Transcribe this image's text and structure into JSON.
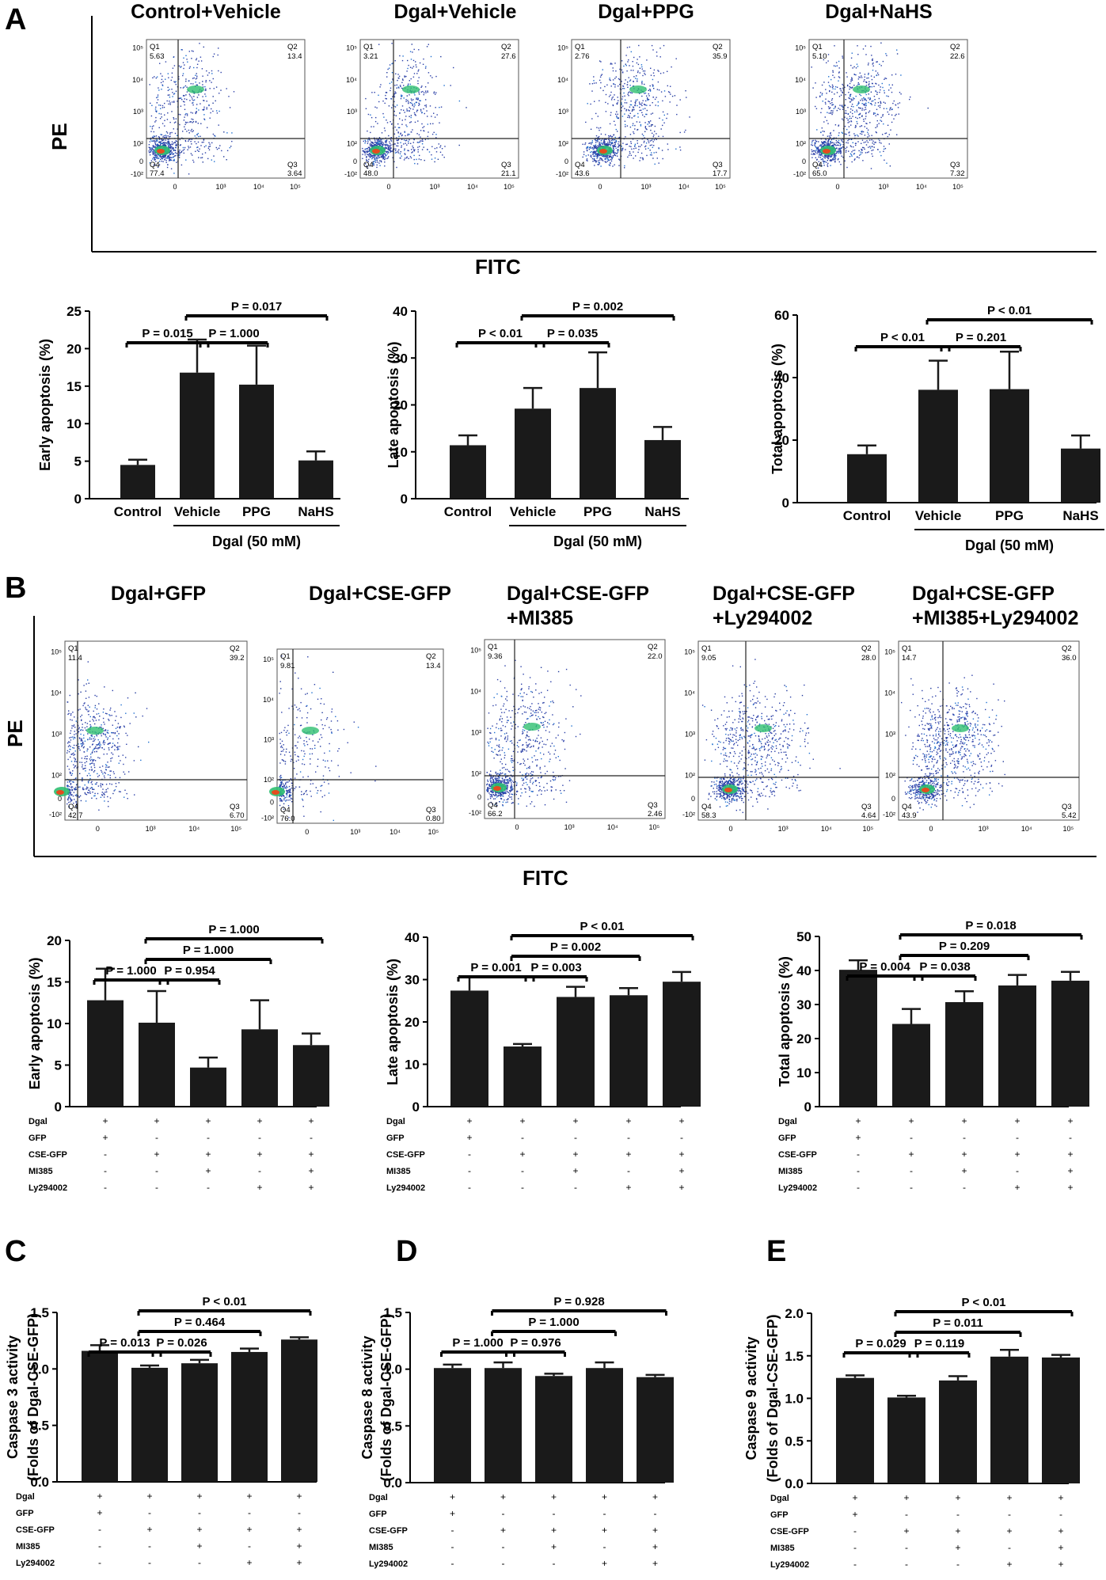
{
  "panels": {
    "A": "A",
    "B": "B",
    "C": "C",
    "D": "D",
    "E": "E"
  },
  "flow_axis": {
    "pe": "PE",
    "fitc": "FITC"
  },
  "flow_headers_A": [
    "Control+Vehicle",
    "Dgal+Vehicle",
    "Dgal+PPG",
    "Dgal+NaHS"
  ],
  "flow_headers_B": [
    [
      "Dgal+GFP",
      ""
    ],
    [
      "Dgal+CSE-GFP",
      ""
    ],
    [
      "Dgal+CSE-GFP",
      "+MI385"
    ],
    [
      "Dgal+CSE-GFP",
      "+Ly294002"
    ],
    [
      "Dgal+CSE-GFP",
      "+MI385+Ly294002"
    ]
  ],
  "flow_quadrants_A": [
    {
      "q1": "5.63",
      "q2": "13.4",
      "q3": "3.64",
      "q4": "77.4"
    },
    {
      "q1": "3.21",
      "q2": "27.6",
      "q3": "21.1",
      "q4": "48.0"
    },
    {
      "q1": "2.76",
      "q2": "35.9",
      "q3": "17.7",
      "q4": "43.6"
    },
    {
      "q1": "5.10",
      "q2": "22.6",
      "q3": "7.32",
      "q4": "65.0"
    }
  ],
  "flow_quadrants_B": [
    {
      "q1": "11.4",
      "q2": "39.2",
      "q3": "6.70",
      "q4": "42.7"
    },
    {
      "q1": "9.81",
      "q2": "13.4",
      "q3": "0.80",
      "q4": "76.0"
    },
    {
      "q1": "9.36",
      "q2": "22.0",
      "q3": "2.46",
      "q4": "66.2"
    },
    {
      "q1": "9.05",
      "q2": "28.0",
      "q3": "4.64",
      "q4": "58.3"
    },
    {
      "q1": "14.7",
      "q2": "36.0",
      "q3": "5.42",
      "q4": "43.9"
    }
  ],
  "quad_labels": [
    "Q1",
    "Q2",
    "Q3",
    "Q4"
  ],
  "flow_ticks": {
    "y": [
      "10⁵",
      "10⁴",
      "10³",
      "10²",
      "0",
      "-10²"
    ],
    "x": [
      "0",
      "10³",
      "10⁴",
      "10⁵"
    ]
  },
  "treatment_rows": [
    "Dgal",
    "GFP",
    "CSE-GFP",
    "MI385",
    "Ly294002"
  ],
  "treatment_signs": [
    [
      "+",
      "+",
      "+",
      "+",
      "+"
    ],
    [
      "+",
      "-",
      "-",
      "-",
      "-"
    ],
    [
      "-",
      "+",
      "+",
      "+",
      "+"
    ],
    [
      "-",
      "-",
      "+",
      "-",
      "+"
    ],
    [
      "-",
      "-",
      "-",
      "+",
      "+"
    ]
  ],
  "group_A_label": "Dgal (50 mM)",
  "chart_data": [
    {
      "id": "A1",
      "type": "bar",
      "ylabel": "Early apoptosis (%)",
      "ylim": [
        0,
        25
      ],
      "yticks": [
        "0",
        "5",
        "10",
        "15",
        "20",
        "25"
      ],
      "categories": [
        "Control",
        "Vehicle",
        "PPG",
        "NaHS"
      ],
      "values": [
        4.5,
        16.8,
        15.2,
        5.1
      ],
      "errors": [
        0.7,
        4.4,
        5.2,
        1.2
      ],
      "group_label": "Dgal (50 mM)",
      "brackets": [
        {
          "from": 0,
          "to": 1,
          "label": "P = 0.015"
        },
        {
          "from": 1,
          "to": 2,
          "label": "P = 1.000"
        },
        {
          "from": 1,
          "to": 3,
          "label": "P = 0.017"
        }
      ]
    },
    {
      "id": "A2",
      "type": "bar",
      "ylabel": "Late apoptosis (%)",
      "ylim": [
        0,
        40
      ],
      "yticks": [
        "0",
        "10",
        "20",
        "30",
        "40"
      ],
      "categories": [
        "Control",
        "Vehicle",
        "PPG",
        "NaHS"
      ],
      "values": [
        11.4,
        19.2,
        23.6,
        12.5
      ],
      "errors": [
        2.1,
        4.4,
        7.6,
        2.8
      ],
      "group_label": "Dgal (50 mM)",
      "brackets": [
        {
          "from": 0,
          "to": 1,
          "label": "P < 0.01"
        },
        {
          "from": 1,
          "to": 2,
          "label": "P = 0.035"
        },
        {
          "from": 1,
          "to": 3,
          "label": "P = 0.002"
        }
      ]
    },
    {
      "id": "A3",
      "type": "bar",
      "ylabel": "Total apoptosis (%)",
      "ylim": [
        0,
        60
      ],
      "yticks": [
        "0",
        "20",
        "40",
        "60"
      ],
      "categories": [
        "Control",
        "Vehicle",
        "PPG",
        "NaHS"
      ],
      "values": [
        15.5,
        36.1,
        36.3,
        17.3
      ],
      "errors": [
        2.8,
        9.3,
        12.0,
        4.2
      ],
      "group_label": "Dgal (50 mM)",
      "brackets": [
        {
          "from": 0,
          "to": 1,
          "label": "P < 0.01"
        },
        {
          "from": 1,
          "to": 2,
          "label": "P = 0.201"
        },
        {
          "from": 1,
          "to": 3,
          "label": "P < 0.01"
        }
      ]
    },
    {
      "id": "B1",
      "type": "bar",
      "ylabel": "Early apoptosis (%)",
      "ylim": [
        0,
        20
      ],
      "yticks": [
        "0",
        "5",
        "10",
        "15",
        "20"
      ],
      "values": [
        12.8,
        10.1,
        4.7,
        9.3,
        7.4
      ],
      "errors": [
        3.8,
        3.8,
        1.2,
        3.5,
        1.4
      ],
      "brackets": [
        {
          "from": 0,
          "to": 1,
          "label": "P = 1.000"
        },
        {
          "from": 1,
          "to": 2,
          "label": "P = 0.954"
        },
        {
          "from": 1,
          "to": 3,
          "label": "P = 1.000"
        },
        {
          "from": 1,
          "to": 4,
          "label": "P = 1.000"
        }
      ]
    },
    {
      "id": "B2",
      "type": "bar",
      "ylabel": "Late apoptosis (%)",
      "ylim": [
        0,
        40
      ],
      "yticks": [
        "0",
        "10",
        "20",
        "30",
        "40"
      ],
      "values": [
        27.4,
        14.2,
        25.9,
        26.3,
        29.5
      ],
      "errors": [
        3.3,
        0.6,
        2.4,
        1.7,
        2.3
      ],
      "brackets": [
        {
          "from": 0,
          "to": 1,
          "label": "P = 0.001"
        },
        {
          "from": 1,
          "to": 2,
          "label": "P = 0.003"
        },
        {
          "from": 1,
          "to": 3,
          "label": "P = 0.002"
        },
        {
          "from": 1,
          "to": 4,
          "label": "P < 0.01"
        }
      ]
    },
    {
      "id": "B3",
      "type": "bar",
      "ylabel": "Total apoptosis (%)",
      "ylim": [
        0,
        50
      ],
      "yticks": [
        "0",
        "10",
        "20",
        "30",
        "40",
        "50"
      ],
      "values": [
        40.2,
        24.3,
        30.7,
        35.6,
        37.0
      ],
      "errors": [
        2.8,
        4.4,
        3.2,
        3.1,
        2.6
      ],
      "brackets": [
        {
          "from": 0,
          "to": 1,
          "label": "P = 0.004"
        },
        {
          "from": 1,
          "to": 2,
          "label": "P = 0.038"
        },
        {
          "from": 1,
          "to": 3,
          "label": "P = 0.209"
        },
        {
          "from": 1,
          "to": 4,
          "label": "P = 0.018"
        }
      ]
    },
    {
      "id": "C",
      "type": "bar",
      "ylabel": "Caspase 3 activity",
      "ylabel2": "(Folds of Dgal-CSE-GFP)",
      "ylim": [
        0,
        1.5
      ],
      "yticks": [
        "0.0",
        "0.5",
        "1.0",
        "1.5"
      ],
      "values": [
        1.16,
        1.01,
        1.05,
        1.15,
        1.26
      ],
      "errors": [
        0.05,
        0.02,
        0.03,
        0.03,
        0.02
      ],
      "brackets": [
        {
          "from": 0,
          "to": 1,
          "label": "P = 0.013"
        },
        {
          "from": 1,
          "to": 2,
          "label": "P = 0.026"
        },
        {
          "from": 1,
          "to": 3,
          "label": "P = 0.464"
        },
        {
          "from": 1,
          "to": 4,
          "label": "P < 0.01"
        }
      ]
    },
    {
      "id": "D",
      "type": "bar",
      "ylabel": "Caspase 8 activity",
      "ylabel2": "(Folds of Dgal-CSE-GFP)",
      "ylim": [
        0,
        1.5
      ],
      "yticks": [
        "0.0",
        "0.5",
        "1.0",
        "1.5"
      ],
      "values": [
        1.01,
        1.01,
        0.94,
        1.01,
        0.93
      ],
      "errors": [
        0.03,
        0.05,
        0.02,
        0.05,
        0.02
      ],
      "brackets": [
        {
          "from": 0,
          "to": 1,
          "label": "P = 1.000"
        },
        {
          "from": 1,
          "to": 2,
          "label": "P = 0.976"
        },
        {
          "from": 1,
          "to": 3,
          "label": "P = 1.000"
        },
        {
          "from": 1,
          "to": 4,
          "label": "P = 0.928"
        }
      ]
    },
    {
      "id": "E",
      "type": "bar",
      "ylabel": "Caspase 9 activity",
      "ylabel2": "(Folds of Dgal-CSE-GFP)",
      "ylim": [
        0,
        2.0
      ],
      "yticks": [
        "0.0",
        "0.5",
        "1.0",
        "1.5",
        "2.0"
      ],
      "values": [
        1.24,
        1.01,
        1.21,
        1.49,
        1.48
      ],
      "errors": [
        0.03,
        0.02,
        0.05,
        0.08,
        0.03
      ],
      "brackets": [
        {
          "from": 0,
          "to": 1,
          "label": "P = 0.029"
        },
        {
          "from": 1,
          "to": 2,
          "label": "P = 0.119"
        },
        {
          "from": 1,
          "to": 3,
          "label": "P = 0.011"
        },
        {
          "from": 1,
          "to": 4,
          "label": "P < 0.01"
        }
      ]
    }
  ]
}
